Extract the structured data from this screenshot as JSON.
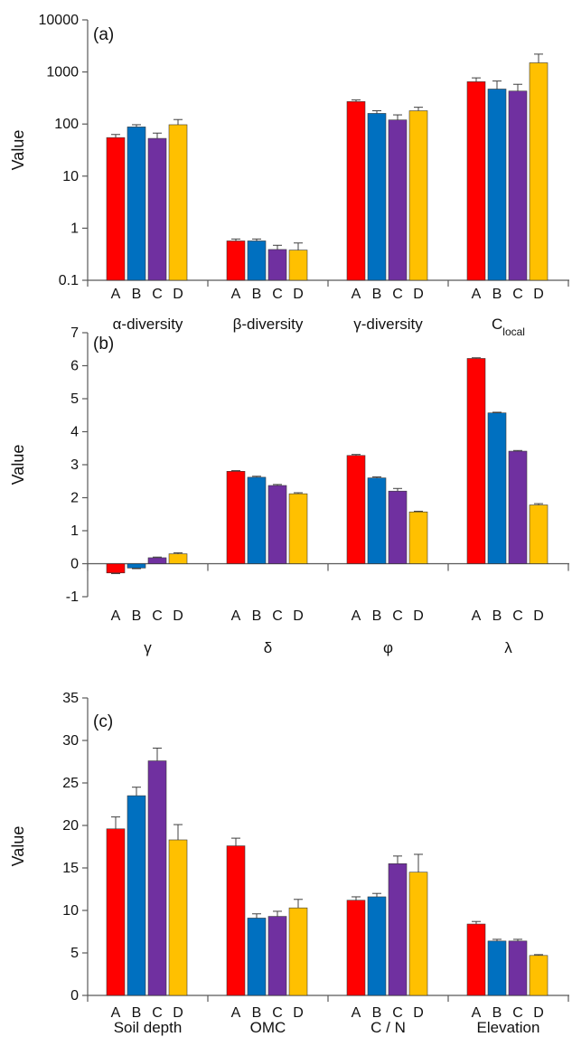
{
  "colors": {
    "A": "#ff0000",
    "B": "#0070c0",
    "C": "#7030a0",
    "D": "#ffc000",
    "axis": "#595959",
    "error_bar": "#404040"
  },
  "chart_data": [
    {
      "type": "bar",
      "panel_label": "(a)",
      "ylabel": "Value",
      "yscale": "log",
      "ylim": [
        0.1,
        10000
      ],
      "yticks": [
        "0.1",
        "1",
        "10",
        "100",
        "1000",
        "10000"
      ],
      "subcategories": [
        "A",
        "B",
        "C",
        "D"
      ],
      "groups": [
        {
          "label": "α-diversity",
          "values": [
            55,
            88,
            53,
            97
          ],
          "errors": [
            8,
            9,
            14,
            25
          ]
        },
        {
          "label": "β-diversity",
          "values": [
            0.57,
            0.57,
            0.39,
            0.38
          ],
          "errors": [
            0.05,
            0.05,
            0.08,
            0.14
          ]
        },
        {
          "label": "γ-diversity",
          "values": [
            270,
            160,
            120,
            180
          ],
          "errors": [
            20,
            20,
            30,
            30
          ]
        },
        {
          "label": "C",
          "label_sub": "local",
          "values": [
            650,
            470,
            430,
            1500
          ],
          "errors": [
            120,
            200,
            150,
            700
          ]
        }
      ],
      "grid": false
    },
    {
      "type": "bar",
      "panel_label": "(b)",
      "ylabel": "Value",
      "ylim": [
        -1,
        7
      ],
      "yticks": [
        "-1",
        "0",
        "1",
        "2",
        "3",
        "4",
        "5",
        "6",
        "7"
      ],
      "subcategories": [
        "A",
        "B",
        "C",
        "D"
      ],
      "groups": [
        {
          "label": "γ",
          "values": [
            -0.28,
            -0.13,
            0.18,
            0.3
          ],
          "errors": [
            0.02,
            0.02,
            0.02,
            0.03
          ]
        },
        {
          "label": "δ",
          "values": [
            2.8,
            2.62,
            2.37,
            2.12
          ],
          "errors": [
            0.02,
            0.03,
            0.03,
            0.03
          ]
        },
        {
          "label": "φ",
          "values": [
            3.28,
            2.6,
            2.2,
            1.57
          ],
          "errors": [
            0.03,
            0.03,
            0.08,
            0.02
          ]
        },
        {
          "label": "λ",
          "values": [
            6.22,
            4.57,
            3.41,
            1.78
          ],
          "errors": [
            0.02,
            0.02,
            0.02,
            0.04
          ]
        }
      ],
      "grid": false
    },
    {
      "type": "bar",
      "panel_label": "(c)",
      "ylabel": "Value",
      "ylim": [
        0,
        35
      ],
      "yticks": [
        "0",
        "5",
        "10",
        "15",
        "20",
        "25",
        "30",
        "35"
      ],
      "subcategories": [
        "A",
        "B",
        "C",
        "D"
      ],
      "groups": [
        {
          "label": "Soil depth",
          "values": [
            19.6,
            23.5,
            27.6,
            18.3
          ],
          "errors": [
            1.4,
            1.0,
            1.5,
            1.8
          ]
        },
        {
          "label": "OMC",
          "values": [
            17.6,
            9.1,
            9.3,
            10.3
          ],
          "errors": [
            0.9,
            0.5,
            0.6,
            1.0
          ]
        },
        {
          "label": "C / N",
          "values": [
            11.2,
            11.6,
            15.5,
            14.5
          ],
          "errors": [
            0.4,
            0.4,
            0.9,
            2.1
          ]
        },
        {
          "label": "Elevation",
          "values": [
            8.4,
            6.4,
            6.4,
            4.7
          ],
          "errors": [
            0.3,
            0.2,
            0.2,
            0.1
          ]
        }
      ],
      "grid": false
    }
  ]
}
